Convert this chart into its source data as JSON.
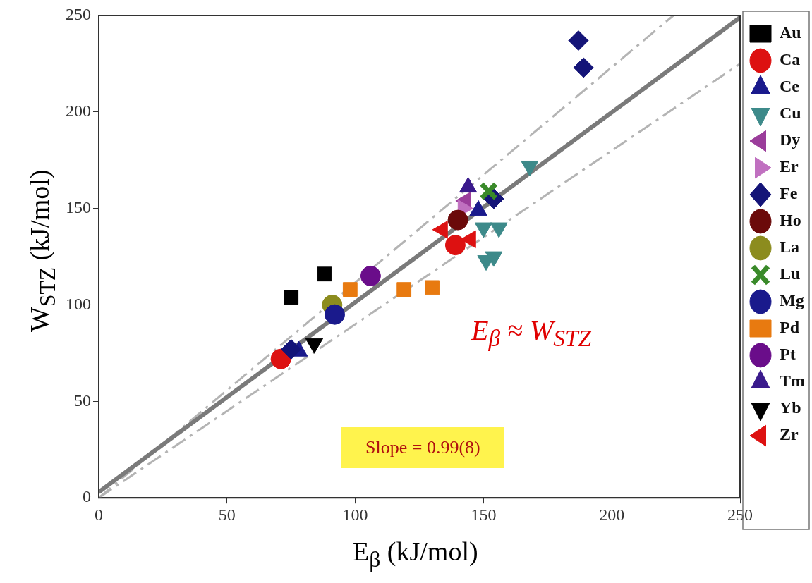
{
  "chart_data": {
    "type": "scatter",
    "xlabel": "E$_{β}$ (kJ/mol)",
    "ylabel": "W$_{STZ}$ (kJ/mol)",
    "xlim": [
      0,
      250
    ],
    "ylim": [
      0,
      250
    ],
    "xticks": [
      0,
      50,
      100,
      150,
      200,
      250
    ],
    "yticks": [
      0,
      50,
      100,
      150,
      200,
      250
    ],
    "legend": "right",
    "grid": false,
    "annotations": [
      "Slope = 0.99(8)",
      "E$_{β}$ ≈ W$_{STZ}$"
    ],
    "series": [
      {
        "name": "Au",
        "color": "#000000",
        "marker": "square",
        "x": [
          75,
          88
        ],
        "values": [
          104,
          116
        ]
      },
      {
        "name": "Ca",
        "color": "#dd1111",
        "marker": "circle",
        "x": [
          71,
          139
        ],
        "values": [
          72,
          131
        ]
      },
      {
        "name": "Ce",
        "color": "#1a1a8c",
        "marker": "triangle",
        "x": [
          78,
          148
        ],
        "values": [
          76,
          149
        ]
      },
      {
        "name": "Cu",
        "color": "#3d8a8a",
        "marker": "triangle-down",
        "x": [
          150,
          156,
          151,
          154,
          168
        ],
        "values": [
          140,
          140,
          123,
          125,
          172
        ]
      },
      {
        "name": "Dy",
        "color": "#9b3d9b",
        "marker": "triangle-left",
        "x": [
          143
        ],
        "values": [
          154
        ]
      },
      {
        "name": "Er",
        "color": "#c070c0",
        "marker": "triangle-right",
        "x": [
          142
        ],
        "values": [
          150
        ]
      },
      {
        "name": "Fe",
        "color": "#141478",
        "marker": "diamond",
        "x": [
          75,
          154,
          187,
          189
        ],
        "values": [
          77,
          155,
          237,
          223
        ]
      },
      {
        "name": "Ho",
        "color": "#6b0a0a",
        "marker": "circle",
        "x": [
          140
        ],
        "values": [
          144
        ]
      },
      {
        "name": "La",
        "color": "#8c8c1e",
        "marker": "circle",
        "x": [
          91
        ],
        "values": [
          100
        ]
      },
      {
        "name": "Lu",
        "color": "#3a8a2a",
        "marker": "cross",
        "x": [
          152
        ],
        "values": [
          159
        ]
      },
      {
        "name": "Mg",
        "color": "#1a1a8c",
        "marker": "circle",
        "x": [
          92
        ],
        "values": [
          95
        ]
      },
      {
        "name": "Pd",
        "color": "#e87a10",
        "marker": "square",
        "x": [
          98,
          119,
          130
        ],
        "values": [
          108,
          108,
          109
        ]
      },
      {
        "name": "Pt",
        "color": "#6a0d8a",
        "marker": "circle",
        "x": [
          106
        ],
        "values": [
          115
        ]
      },
      {
        "name": "Tm",
        "color": "#3a1a8c",
        "marker": "triangle",
        "x": [
          144
        ],
        "values": [
          161
        ]
      },
      {
        "name": "Yb",
        "color": "#000000",
        "marker": "triangle-down",
        "x": [
          84
        ],
        "values": [
          80
        ]
      },
      {
        "name": "Zr",
        "color": "#dd1111",
        "marker": "triangle-left",
        "x": [
          134,
          145
        ],
        "values": [
          139,
          134
        ]
      },
      {
        "type": "line",
        "color": "#7a7a7a",
        "line_style": "solid",
        "x": [
          0,
          250
        ],
        "values": [
          3,
          249
        ]
      },
      {
        "type": "line",
        "color": "#b4b4b4",
        "line_style": "dashed",
        "x": [
          0,
          224
        ],
        "values": [
          0,
          250
        ]
      },
      {
        "type": "line",
        "color": "#b4b4b4",
        "line_style": "dashed",
        "x": [
          0,
          250
        ],
        "values": [
          0,
          225
        ]
      }
    ]
  }
}
